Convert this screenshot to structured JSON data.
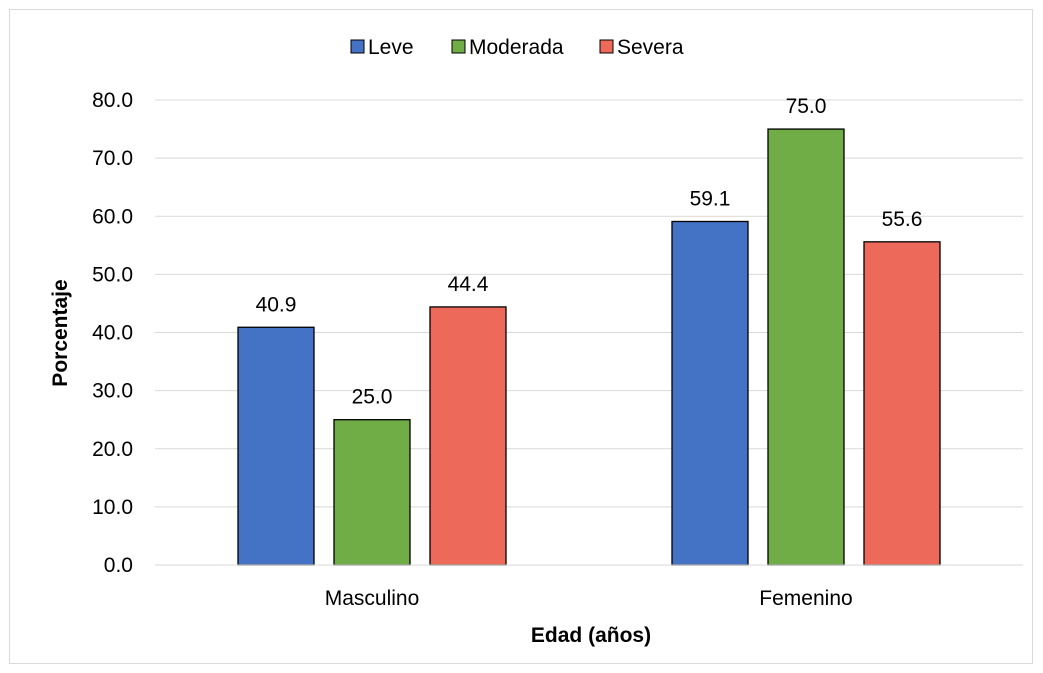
{
  "chart_data": {
    "type": "bar",
    "categories": [
      "Masculino",
      "Femenino"
    ],
    "series": [
      {
        "name": "Leve",
        "values": [
          40.9,
          59.1
        ],
        "color": "#4472c4"
      },
      {
        "name": "Moderada",
        "values": [
          25.0,
          75.0
        ],
        "color": "#70ad47"
      },
      {
        "name": "Severa",
        "values": [
          44.4,
          55.6
        ],
        "color": "#ed6a5a"
      }
    ],
    "xlabel": "Edad (años)",
    "ylabel": "Porcentaje",
    "ylim": [
      0,
      80
    ],
    "yticks": [
      "0.0",
      "10.0",
      "20.0",
      "30.0",
      "40.0",
      "50.0",
      "60.0",
      "70.0",
      "80.0"
    ],
    "ytick_values": [
      0,
      10,
      20,
      30,
      40,
      50,
      60,
      70,
      80
    ],
    "data_labels": [
      [
        "40.9",
        "59.1"
      ],
      [
        "25.0",
        "75.0"
      ],
      [
        "44.4",
        "55.6"
      ]
    ],
    "grid": true,
    "legend_position": "top-center",
    "gridline_color": "#d9d9d9",
    "bar_outline_color": "#000000"
  }
}
